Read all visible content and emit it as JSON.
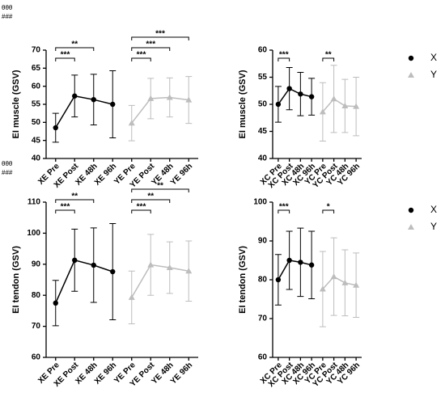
{
  "chart_data": [
    {
      "type": "line",
      "ylabel": "EI muscle (GSV)",
      "annotations": [
        "θθθ",
        "###"
      ],
      "categories": [
        "XE Pre",
        "XE Post",
        "XE 48h",
        "XE 96h",
        "YE Pre",
        "YE Post",
        "YE 48h",
        "YE 96h"
      ],
      "ylim": [
        40,
        70
      ],
      "yticks": [
        40,
        45,
        50,
        55,
        60,
        65,
        70
      ],
      "series": [
        {
          "color": "#000000",
          "marker": "circle",
          "values": [
            48.5,
            57.3,
            56.3,
            55.0,
            null,
            null,
            null,
            null
          ],
          "errors": [
            4.0,
            5.8,
            7.0,
            9.3,
            null,
            null,
            null,
            null
          ]
        },
        {
          "color": "#bdbdbd",
          "marker": "triangle",
          "values": [
            null,
            null,
            null,
            null,
            49.8,
            56.6,
            56.9,
            56.2
          ],
          "errors": [
            null,
            null,
            null,
            null,
            4.9,
            5.6,
            5.4,
            6.5
          ]
        }
      ],
      "brackets": [
        {
          "from": 0,
          "to": 1,
          "label": "***"
        },
        {
          "from": 0,
          "to": 2,
          "label": "**"
        },
        {
          "from": 4,
          "to": 5,
          "label": "***"
        },
        {
          "from": 4,
          "to": 6,
          "label": "***"
        },
        {
          "from": 4,
          "to": 7,
          "label": "***"
        }
      ]
    },
    {
      "type": "line",
      "ylabel": "EI muscle (GSV)",
      "legend": "right",
      "categories": [
        "XC Pre",
        "XC Post",
        "XC 48h",
        "XC 96h",
        "YC Pre",
        "YC Post",
        "YC 48h",
        "YC 96h"
      ],
      "ylim": [
        40,
        60
      ],
      "yticks": [
        40,
        45,
        50,
        55,
        60
      ],
      "series": [
        {
          "name": "X",
          "color": "#000000",
          "marker": "circle",
          "values": [
            50.0,
            52.9,
            51.9,
            51.4,
            null,
            null,
            null,
            null
          ],
          "errors": [
            3.3,
            3.9,
            4.0,
            3.4,
            null,
            null,
            null,
            null
          ]
        },
        {
          "name": "Y",
          "color": "#bdbdbd",
          "marker": "triangle",
          "values": [
            null,
            null,
            null,
            null,
            48.6,
            51.0,
            49.7,
            49.6
          ],
          "errors": [
            null,
            null,
            null,
            null,
            5.4,
            6.2,
            4.9,
            5.4
          ]
        }
      ],
      "brackets": [
        {
          "from": 0,
          "to": 1,
          "label": "***"
        },
        {
          "from": 4,
          "to": 5,
          "label": "**"
        }
      ]
    },
    {
      "type": "line",
      "ylabel": "EI tendon (GSV)",
      "annotations": [
        "θθθ",
        "###"
      ],
      "categories": [
        "XE Pre",
        "XE Post",
        "XE 48h",
        "XE 96h",
        "YE Pre",
        "YE Post",
        "YE 48h",
        "YE 96h"
      ],
      "ylim": [
        60,
        110
      ],
      "yticks": [
        60,
        70,
        80,
        90,
        100,
        110
      ],
      "series": [
        {
          "color": "#000000",
          "marker": "circle",
          "values": [
            77.5,
            91.3,
            89.7,
            87.6,
            null,
            null,
            null,
            null
          ],
          "errors": [
            7.3,
            10.0,
            12.0,
            15.5,
            null,
            null,
            null,
            null
          ]
        },
        {
          "color": "#bdbdbd",
          "marker": "triangle",
          "values": [
            null,
            null,
            null,
            null,
            79.3,
            89.8,
            88.9,
            87.8
          ],
          "errors": [
            null,
            null,
            null,
            null,
            8.5,
            9.8,
            8.3,
            9.7
          ]
        }
      ],
      "brackets": [
        {
          "from": 0,
          "to": 1,
          "label": "***"
        },
        {
          "from": 0,
          "to": 2,
          "label": "**"
        },
        {
          "from": 4,
          "to": 5,
          "label": "***"
        },
        {
          "from": 4,
          "to": 6,
          "label": "**"
        },
        {
          "from": 4,
          "to": 7,
          "label": "**"
        }
      ]
    },
    {
      "type": "line",
      "ylabel": "EI tendon (GSV)",
      "legend": "right",
      "categories": [
        "XC Pre",
        "XC Post",
        "XC 48h",
        "XC 96h",
        "YC Pre",
        "YC Post",
        "YC 48h",
        "YC 96h"
      ],
      "ylim": [
        60,
        100
      ],
      "yticks": [
        60,
        70,
        80,
        90,
        100
      ],
      "series": [
        {
          "name": "X",
          "color": "#000000",
          "marker": "circle",
          "values": [
            80.0,
            85.0,
            84.5,
            83.8,
            null,
            null,
            null,
            null
          ],
          "errors": [
            6.5,
            7.5,
            8.8,
            8.7,
            null,
            null,
            null,
            null
          ]
        },
        {
          "name": "Y",
          "color": "#bdbdbd",
          "marker": "triangle",
          "values": [
            null,
            null,
            null,
            null,
            77.6,
            80.8,
            79.2,
            78.6
          ],
          "errors": [
            null,
            null,
            null,
            null,
            9.7,
            10.0,
            8.5,
            8.3
          ]
        }
      ],
      "brackets": [
        {
          "from": 0,
          "to": 1,
          "label": "***"
        },
        {
          "from": 4,
          "to": 5,
          "label": "*"
        }
      ]
    }
  ]
}
